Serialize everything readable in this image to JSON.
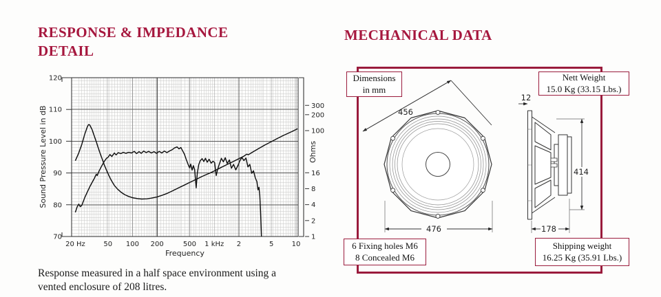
{
  "left_section": {
    "title_line1": "RESPONSE & IMPEDANCE",
    "title_line2": "DETAIL",
    "caption_line1": "Response measured in a half space environment using a",
    "caption_line2": "vented enclosure of 208 litres."
  },
  "right_section": {
    "title": "MECHANICAL DATA",
    "boxes": {
      "dimensions": {
        "line1": "Dimensions",
        "line2": "in mm"
      },
      "nett_weight": {
        "line1": "Nett Weight",
        "line2": "15.0 Kg (33.15 Lbs.)"
      },
      "fixing": {
        "line1": "6 Fixing holes M6",
        "line2": "8 Concealed M6"
      },
      "shipping": {
        "line1": "Shipping weight",
        "line2": "16.25 Kg (35.91 Lbs.)"
      }
    },
    "dims": {
      "front_diagonal_mm": "456",
      "front_width_mm": "476",
      "depth_mm": "178",
      "height_mm": "414",
      "flange_mm": "12"
    }
  },
  "colors": {
    "accent": "#9A1B3C",
    "title": "#A6173E",
    "curve": "#101010"
  },
  "chart_data": {
    "type": "line",
    "title": "",
    "xlabel": "Frequency",
    "ylabel_left": "Sound Pressure Level in dB",
    "ylabel_right": "Ohms",
    "x_scale": "log",
    "x_range_hz": [
      18,
      10600
    ],
    "y_left_range_db": [
      70,
      120
    ],
    "y_right_log_range_ohm": [
      1,
      1000
    ],
    "x_ticks": [
      {
        "v": 20,
        "label": "20 Hz"
      },
      {
        "v": 50,
        "label": "50"
      },
      {
        "v": 100,
        "label": "100"
      },
      {
        "v": 200,
        "label": "200"
      },
      {
        "v": 500,
        "label": "500"
      },
      {
        "v": 1000,
        "label": "1 kHz"
      },
      {
        "v": 2000,
        "label": "2"
      },
      {
        "v": 5000,
        "label": "5"
      },
      {
        "v": 10000,
        "label": "10"
      }
    ],
    "x_major_gridlines": [
      200,
      2000
    ],
    "x_medium_gridlines": [
      50,
      100,
      500,
      1000,
      5000,
      10000
    ],
    "y_left_ticks": [
      70,
      80,
      90,
      100,
      110,
      120
    ],
    "y_right_ticks": [
      1,
      2,
      4,
      8,
      16,
      100,
      200,
      300
    ],
    "series": [
      {
        "name": "Sound Pressure Level",
        "axis": "left",
        "points": [
          [
            20,
            77.6
          ],
          [
            21,
            79.3
          ],
          [
            22,
            80.2
          ],
          [
            23,
            79.4
          ],
          [
            24,
            79.8
          ],
          [
            26,
            82.2
          ],
          [
            28,
            84.0
          ],
          [
            30,
            85.6
          ],
          [
            32,
            87.0
          ],
          [
            34,
            88.2
          ],
          [
            36,
            89.6
          ],
          [
            37,
            89.2
          ],
          [
            39,
            90.6
          ],
          [
            42,
            92.2
          ],
          [
            45,
            93.6
          ],
          [
            48,
            94.6
          ],
          [
            50,
            94.9
          ],
          [
            53,
            95.8
          ],
          [
            56,
            95.2
          ],
          [
            60,
            96.3
          ],
          [
            63,
            95.7
          ],
          [
            67,
            96.4
          ],
          [
            72,
            96.1
          ],
          [
            77,
            96.5
          ],
          [
            83,
            96.2
          ],
          [
            90,
            96.5
          ],
          [
            97,
            96.3
          ],
          [
            105,
            96.8
          ],
          [
            112,
            96.1
          ],
          [
            120,
            96.7
          ],
          [
            128,
            96.2
          ],
          [
            137,
            96.9
          ],
          [
            147,
            96.4
          ],
          [
            158,
            96.8
          ],
          [
            170,
            96.3
          ],
          [
            183,
            96.7
          ],
          [
            197,
            96.2
          ],
          [
            212,
            96.8
          ],
          [
            228,
            96.3
          ],
          [
            245,
            96.9
          ],
          [
            263,
            96.4
          ],
          [
            283,
            96.9
          ],
          [
            304,
            97.3
          ],
          [
            327,
            97.9
          ],
          [
            351,
            98.2
          ],
          [
            370,
            97.6
          ],
          [
            390,
            98.0
          ],
          [
            410,
            97.0
          ],
          [
            430,
            96.0
          ],
          [
            455,
            94.2
          ],
          [
            480,
            92.6
          ],
          [
            500,
            91.6
          ],
          [
            515,
            92.8
          ],
          [
            535,
            90.9
          ],
          [
            555,
            92.3
          ],
          [
            575,
            91.0
          ],
          [
            600,
            85.3
          ],
          [
            620,
            90.0
          ],
          [
            645,
            92.6
          ],
          [
            675,
            93.9
          ],
          [
            710,
            94.5
          ],
          [
            745,
            93.6
          ],
          [
            780,
            94.6
          ],
          [
            820,
            93.4
          ],
          [
            865,
            94.3
          ],
          [
            915,
            93.1
          ],
          [
            965,
            93.7
          ],
          [
            1010,
            93.3
          ],
          [
            1055,
            89.2
          ],
          [
            1100,
            91.2
          ],
          [
            1160,
            93.0
          ],
          [
            1220,
            94.6
          ],
          [
            1290,
            93.5
          ],
          [
            1360,
            94.8
          ],
          [
            1440,
            93.0
          ],
          [
            1530,
            94.1
          ],
          [
            1620,
            91.5
          ],
          [
            1720,
            92.7
          ],
          [
            1830,
            91.0
          ],
          [
            1950,
            92.4
          ],
          [
            2060,
            93.9
          ],
          [
            2180,
            94.9
          ],
          [
            2300,
            93.9
          ],
          [
            2440,
            94.7
          ],
          [
            2580,
            91.9
          ],
          [
            2720,
            92.7
          ],
          [
            2870,
            89.9
          ],
          [
            3020,
            90.7
          ],
          [
            3170,
            88.5
          ],
          [
            3320,
            87.3
          ],
          [
            3420,
            84.7
          ],
          [
            3520,
            85.5
          ],
          [
            3600,
            83.0
          ],
          [
            3680,
            78.0
          ],
          [
            3750,
            72.0
          ],
          [
            3820,
            66.0
          ]
        ]
      },
      {
        "name": "Impedance",
        "axis": "right",
        "points": [
          [
            20,
            27
          ],
          [
            22,
            38
          ],
          [
            24,
            55
          ],
          [
            26,
            85
          ],
          [
            28,
            118
          ],
          [
            29,
            130
          ],
          [
            30,
            128
          ],
          [
            32,
            105
          ],
          [
            34,
            80
          ],
          [
            36,
            62
          ],
          [
            38,
            48
          ],
          [
            40,
            38
          ],
          [
            43,
            28
          ],
          [
            46,
            21
          ],
          [
            50,
            15.5
          ],
          [
            55,
            11.5
          ],
          [
            60,
            9.2
          ],
          [
            66,
            7.8
          ],
          [
            73,
            6.8
          ],
          [
            80,
            6.2
          ],
          [
            90,
            5.7
          ],
          [
            100,
            5.4
          ],
          [
            115,
            5.2
          ],
          [
            130,
            5.1
          ],
          [
            150,
            5.15
          ],
          [
            170,
            5.3
          ],
          [
            200,
            5.6
          ],
          [
            230,
            6.0
          ],
          [
            270,
            6.6
          ],
          [
            310,
            7.3
          ],
          [
            360,
            8.2
          ],
          [
            420,
            9.2
          ],
          [
            500,
            10.5
          ],
          [
            600,
            12.0
          ],
          [
            700,
            13.5
          ],
          [
            800,
            14.8
          ],
          [
            900,
            16.0
          ],
          [
            1000,
            17.3
          ],
          [
            1200,
            20
          ],
          [
            1400,
            22.5
          ],
          [
            1700,
            26
          ],
          [
            2000,
            29.5
          ],
          [
            2300,
            33
          ],
          [
            2500,
            36
          ],
          [
            2600,
            35
          ],
          [
            3000,
            40
          ],
          [
            3500,
            46
          ],
          [
            4200,
            54
          ],
          [
            5000,
            62
          ],
          [
            6000,
            72
          ],
          [
            7000,
            81
          ],
          [
            8000,
            89
          ],
          [
            9000,
            97
          ],
          [
            10000,
            105
          ],
          [
            10400,
            108
          ]
        ]
      }
    ]
  }
}
